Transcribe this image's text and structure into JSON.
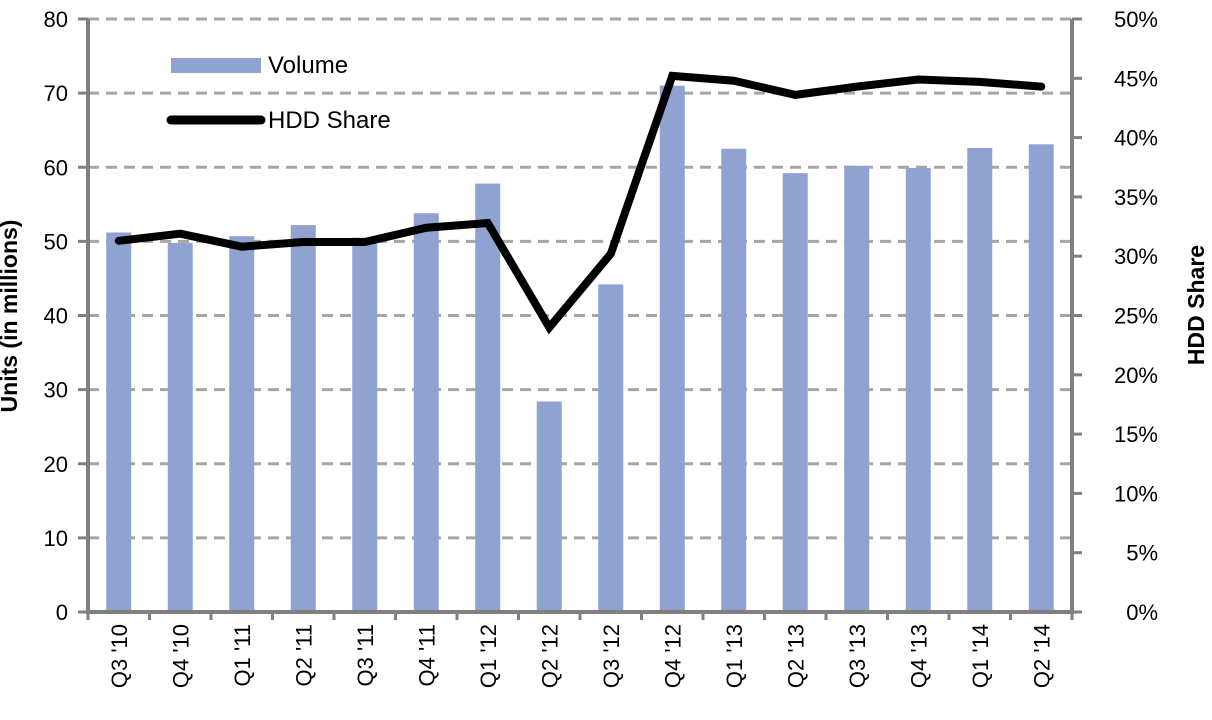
{
  "chart_data": {
    "type": "bar",
    "categories": [
      "Q3 '10",
      "Q4 '10",
      "Q1 '11",
      "Q2 '11",
      "Q3 '11",
      "Q4 '11",
      "Q1 '12",
      "Q2 '12",
      "Q3 '12",
      "Q4 '12",
      "Q1 '13",
      "Q2 '13",
      "Q3 '13",
      "Q4 '13",
      "Q1 '14",
      "Q2 '14"
    ],
    "series": [
      {
        "name": "Volume",
        "type": "bar",
        "axis": "left",
        "color": "#8fa2d0",
        "values": [
          51.2,
          49.8,
          50.7,
          52.2,
          50.5,
          53.8,
          57.8,
          28.4,
          44.2,
          71.0,
          62.5,
          59.2,
          60.2,
          59.9,
          62.6,
          63.1
        ]
      },
      {
        "name": "HDD Share",
        "type": "line",
        "axis": "right",
        "color": "#000000",
        "values": [
          31.3,
          31.9,
          30.8,
          31.2,
          31.2,
          32.4,
          32.8,
          24.0,
          30.2,
          45.2,
          44.8,
          43.6,
          44.3,
          44.9,
          44.7,
          44.3
        ]
      }
    ],
    "title": "",
    "xlabel": "",
    "ylabel": "Units (in millions)",
    "ylabel_right": "HDD Share",
    "ylim": [
      0,
      80
    ],
    "ylim_right": [
      0,
      50
    ],
    "yticks": [
      "0",
      "10",
      "20",
      "30",
      "40",
      "50",
      "60",
      "70",
      "80"
    ],
    "yticks_right": [
      "0%",
      "5%",
      "10%",
      "15%",
      "20%",
      "25%",
      "30%",
      "35%",
      "40%",
      "45%",
      "50%"
    ],
    "grid": "horizontal-dashed",
    "legend": "top-left"
  }
}
